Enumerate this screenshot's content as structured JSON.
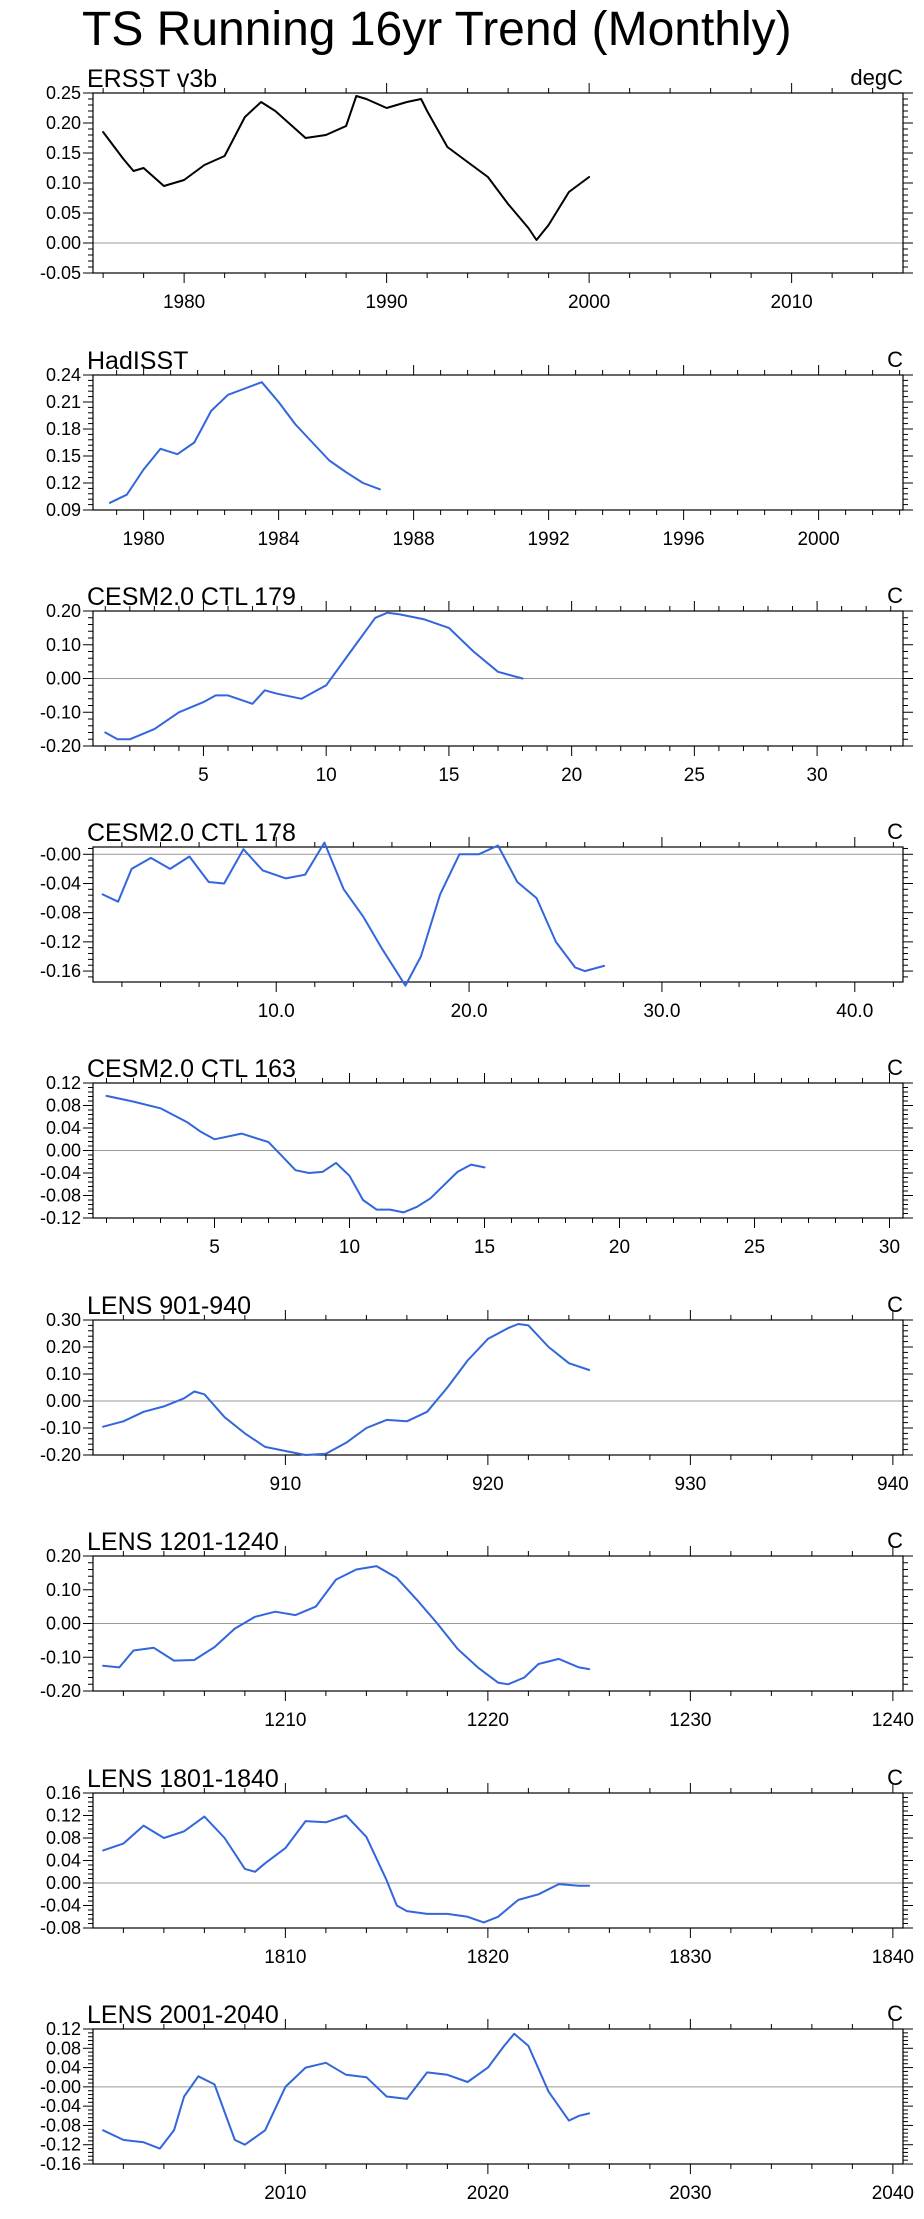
{
  "page_title": "TS Running 16yr Trend (Monthly)",
  "colors": {
    "obs_line": "#000000",
    "model_line": "#3366dd",
    "zero_line": "#999999",
    "axis": "#000000"
  },
  "chart_data": [
    {
      "type": "line",
      "title": "ERSST v3b",
      "units": "degC",
      "xlim": [
        1975.5,
        2015.5
      ],
      "ylim": [
        -0.05,
        0.25
      ],
      "xticks": [
        1980,
        1990,
        2000,
        2010
      ],
      "xtick_labels": [
        "1980",
        "1990",
        "2000",
        "2010"
      ],
      "yticks": [
        -0.05,
        0.0,
        0.05,
        0.1,
        0.15,
        0.2,
        0.25
      ],
      "ytick_labels": [
        "-0.05",
        "0.00",
        "0.05",
        "0.10",
        "0.15",
        "0.20",
        "0.25"
      ],
      "line_color": "#000000",
      "series": [
        {
          "name": "ERSST v3b",
          "x": [
            1976,
            1977,
            1977.5,
            1978,
            1979,
            1980,
            1981,
            1982,
            1983,
            1983.8,
            1984.5,
            1985,
            1986,
            1987,
            1988,
            1988.5,
            1989,
            1990,
            1991,
            1991.7,
            1992,
            1993,
            1994,
            1995,
            1996,
            1997,
            1997.4,
            1998,
            1999,
            2000
          ],
          "y": [
            0.185,
            0.14,
            0.12,
            0.125,
            0.095,
            0.105,
            0.13,
            0.145,
            0.21,
            0.235,
            0.22,
            0.205,
            0.175,
            0.18,
            0.195,
            0.245,
            0.24,
            0.225,
            0.235,
            0.24,
            0.22,
            0.16,
            0.135,
            0.11,
            0.065,
            0.025,
            0.005,
            0.03,
            0.085,
            0.11
          ]
        }
      ]
    },
    {
      "type": "line",
      "title": "HadISST",
      "units": "C",
      "xlim": [
        1978.5,
        2002.5
      ],
      "ylim": [
        0.09,
        0.24
      ],
      "xticks": [
        1980,
        1984,
        1988,
        1992,
        1996,
        2000
      ],
      "xtick_labels": [
        "1980",
        "1984",
        "1988",
        "1992",
        "1996",
        "2000"
      ],
      "yticks": [
        0.09,
        0.12,
        0.15,
        0.18,
        0.21,
        0.24
      ],
      "ytick_labels": [
        "0.09",
        "0.12",
        "0.15",
        "0.18",
        "0.21",
        "0.24"
      ],
      "line_color": "#3366dd",
      "series": [
        {
          "name": "HadISST",
          "x": [
            1979,
            1979.5,
            1980,
            1980.5,
            1981,
            1981.5,
            1982,
            1982.5,
            1983,
            1983.5,
            1984,
            1984.5,
            1985,
            1985.5,
            1986,
            1986.5,
            1987
          ],
          "y": [
            0.098,
            0.107,
            0.135,
            0.158,
            0.152,
            0.165,
            0.2,
            0.218,
            0.225,
            0.232,
            0.21,
            0.185,
            0.165,
            0.145,
            0.132,
            0.12,
            0.113
          ]
        }
      ]
    },
    {
      "type": "line",
      "title": "CESM2.0 CTL 179",
      "units": "C",
      "xlim": [
        0.5,
        33.5
      ],
      "ylim": [
        -0.2,
        0.2
      ],
      "xticks": [
        5,
        10,
        15,
        20,
        25,
        30
      ],
      "xtick_labels": [
        "5",
        "10",
        "15",
        "20",
        "25",
        "30"
      ],
      "yticks": [
        -0.2,
        -0.1,
        0.0,
        0.1,
        0.2
      ],
      "ytick_labels": [
        "-0.20",
        "-0.10",
        "0.00",
        "0.10",
        "0.20"
      ],
      "line_color": "#3366dd",
      "series": [
        {
          "name": "CESM2.0 CTL 179",
          "x": [
            1,
            1.5,
            2,
            3,
            4,
            5,
            5.5,
            6,
            7,
            7.5,
            8,
            9,
            10,
            11,
            12,
            12.5,
            13,
            14,
            15,
            16,
            17,
            18
          ],
          "y": [
            -0.16,
            -0.18,
            -0.18,
            -0.15,
            -0.1,
            -0.07,
            -0.05,
            -0.05,
            -0.075,
            -0.035,
            -0.045,
            -0.06,
            -0.02,
            0.08,
            0.18,
            0.195,
            0.19,
            0.175,
            0.15,
            0.08,
            0.02,
            0.0
          ]
        }
      ]
    },
    {
      "type": "line",
      "title": "CESM2.0 CTL 178",
      "units": "C",
      "xlim": [
        0.5,
        42.5
      ],
      "ylim": [
        -0.175,
        0.01
      ],
      "xticks": [
        10,
        20,
        30,
        40
      ],
      "xtick_labels": [
        "10.0",
        "20.0",
        "30.0",
        "40.0"
      ],
      "yticks": [
        -0.16,
        -0.12,
        -0.08,
        -0.04,
        0.0
      ],
      "ytick_labels": [
        "-0.16",
        "-0.12",
        "-0.08",
        "-0.04",
        "-0.00"
      ],
      "line_color": "#3366dd",
      "series": [
        {
          "name": "CESM2.0 CTL 178",
          "x": [
            1,
            1.8,
            2.5,
            3.5,
            4.5,
            5.5,
            6.5,
            7.3,
            8.3,
            9.3,
            10.5,
            11.5,
            12.5,
            13.5,
            14.5,
            15.5,
            16.7,
            17.5,
            18.5,
            19.5,
            20.5,
            21.5,
            22.5,
            23.5,
            24.5,
            25.5,
            26,
            27
          ],
          "y": [
            -0.055,
            -0.065,
            -0.02,
            -0.005,
            -0.02,
            -0.003,
            -0.038,
            -0.04,
            0.007,
            -0.022,
            -0.033,
            -0.028,
            0.016,
            -0.048,
            -0.085,
            -0.13,
            -0.18,
            -0.14,
            -0.055,
            0.0,
            0.0,
            0.012,
            -0.038,
            -0.06,
            -0.12,
            -0.155,
            -0.16,
            -0.153
          ]
        }
      ]
    },
    {
      "type": "line",
      "title": "CESM2.0 CTL 163",
      "units": "C",
      "xlim": [
        0.5,
        30.5
      ],
      "ylim": [
        -0.12,
        0.12
      ],
      "xticks": [
        5,
        10,
        15,
        20,
        25,
        30
      ],
      "xtick_labels": [
        "5",
        "10",
        "15",
        "20",
        "25",
        "30"
      ],
      "yticks": [
        -0.12,
        -0.08,
        -0.04,
        0.0,
        0.04,
        0.08,
        0.12
      ],
      "ytick_labels": [
        "-0.12",
        "-0.08",
        "-0.04",
        "0.00",
        "0.04",
        "0.08",
        "0.12"
      ],
      "line_color": "#3366dd",
      "series": [
        {
          "name": "CESM2.0 CTL 163",
          "x": [
            1,
            2,
            3,
            4,
            4.5,
            5,
            6,
            7,
            7.5,
            8,
            8.5,
            9,
            9.5,
            10,
            10.5,
            11,
            11.5,
            12,
            12.5,
            13,
            14,
            14.5,
            15
          ],
          "y": [
            0.097,
            0.087,
            0.075,
            0.05,
            0.033,
            0.02,
            0.03,
            0.015,
            -0.01,
            -0.035,
            -0.04,
            -0.038,
            -0.022,
            -0.045,
            -0.088,
            -0.105,
            -0.105,
            -0.11,
            -0.1,
            -0.085,
            -0.038,
            -0.025,
            -0.03
          ]
        }
      ]
    },
    {
      "type": "line",
      "title": "LENS 901-940",
      "units": "C",
      "xlim": [
        900.5,
        940.5
      ],
      "ylim": [
        -0.2,
        0.3
      ],
      "xticks": [
        910,
        920,
        930,
        940
      ],
      "xtick_labels": [
        "910",
        "920",
        "930",
        "940"
      ],
      "yticks": [
        -0.2,
        -0.1,
        0.0,
        0.1,
        0.2,
        0.3
      ],
      "ytick_labels": [
        "-0.20",
        "-0.10",
        "0.00",
        "0.10",
        "0.20",
        "0.30"
      ],
      "line_color": "#3366dd",
      "series": [
        {
          "name": "LENS 901-940",
          "x": [
            901,
            902,
            903,
            904,
            905,
            905.5,
            906,
            907,
            908,
            909,
            910,
            911,
            912,
            913,
            914,
            915,
            916,
            917,
            918,
            919,
            920,
            921,
            921.5,
            922,
            923,
            924,
            925
          ],
          "y": [
            -0.095,
            -0.075,
            -0.04,
            -0.02,
            0.01,
            0.035,
            0.025,
            -0.06,
            -0.12,
            -0.17,
            -0.185,
            -0.2,
            -0.195,
            -0.155,
            -0.1,
            -0.07,
            -0.075,
            -0.04,
            0.05,
            0.15,
            0.23,
            0.27,
            0.285,
            0.28,
            0.2,
            0.14,
            0.115
          ]
        }
      ]
    },
    {
      "type": "line",
      "title": "LENS 1201-1240",
      "units": "C",
      "xlim": [
        1200.5,
        1240.5
      ],
      "ylim": [
        -0.2,
        0.2
      ],
      "xticks": [
        1210,
        1220,
        1230,
        1240
      ],
      "xtick_labels": [
        "1210",
        "1220",
        "1230",
        "1240"
      ],
      "yticks": [
        -0.2,
        -0.1,
        0.0,
        0.1,
        0.2
      ],
      "ytick_labels": [
        "-0.20",
        "-0.10",
        "0.00",
        "0.10",
        "0.20"
      ],
      "line_color": "#3366dd",
      "series": [
        {
          "name": "LENS 1201-1240",
          "x": [
            1201,
            1201.8,
            1202.5,
            1203.5,
            1204.5,
            1205.5,
            1206.5,
            1207.5,
            1208.5,
            1209.5,
            1210.5,
            1211.5,
            1212.5,
            1213.5,
            1214.5,
            1215.5,
            1216.5,
            1217.5,
            1218.5,
            1219.5,
            1220.5,
            1221,
            1221.8,
            1222.5,
            1223.5,
            1224.5,
            1225
          ],
          "y": [
            -0.125,
            -0.13,
            -0.08,
            -0.072,
            -0.11,
            -0.108,
            -0.07,
            -0.015,
            0.02,
            0.035,
            0.025,
            0.05,
            0.13,
            0.16,
            0.17,
            0.135,
            0.07,
            0.0,
            -0.075,
            -0.13,
            -0.175,
            -0.18,
            -0.16,
            -0.12,
            -0.105,
            -0.13,
            -0.135
          ]
        }
      ]
    },
    {
      "type": "line",
      "title": "LENS 1801-1840",
      "units": "C",
      "xlim": [
        1800.5,
        1840.5
      ],
      "ylim": [
        -0.08,
        0.16
      ],
      "xticks": [
        1810,
        1820,
        1830,
        1840
      ],
      "xtick_labels": [
        "1810",
        "1820",
        "1830",
        "1840"
      ],
      "yticks": [
        -0.08,
        -0.04,
        0.0,
        0.04,
        0.08,
        0.12,
        0.16
      ],
      "ytick_labels": [
        "-0.08",
        "-0.04",
        "0.00",
        "0.04",
        "0.08",
        "0.12",
        "0.16"
      ],
      "line_color": "#3366dd",
      "series": [
        {
          "name": "LENS 1801-1840",
          "x": [
            1801,
            1802,
            1803,
            1804,
            1805,
            1806,
            1807,
            1808,
            1808.5,
            1809,
            1810,
            1811,
            1812,
            1813,
            1814,
            1815,
            1815.5,
            1816,
            1817,
            1818,
            1819,
            1819.8,
            1820.5,
            1821.5,
            1822.5,
            1823.5,
            1824.5,
            1825
          ],
          "y": [
            0.058,
            0.07,
            0.102,
            0.08,
            0.092,
            0.118,
            0.08,
            0.025,
            0.02,
            0.035,
            0.062,
            0.11,
            0.108,
            0.12,
            0.082,
            0.005,
            -0.04,
            -0.05,
            -0.055,
            -0.055,
            -0.06,
            -0.07,
            -0.06,
            -0.03,
            -0.02,
            -0.002,
            -0.005,
            -0.005
          ]
        }
      ]
    },
    {
      "type": "line",
      "title": "LENS 2001-2040",
      "units": "C",
      "xlim": [
        2000.5,
        2040.5
      ],
      "ylim": [
        -0.16,
        0.12
      ],
      "xticks": [
        2010,
        2020,
        2030,
        2040
      ],
      "xtick_labels": [
        "2010",
        "2020",
        "2030",
        "2040"
      ],
      "yticks": [
        -0.16,
        -0.12,
        -0.08,
        -0.04,
        0.0,
        0.04,
        0.08,
        0.12
      ],
      "ytick_labels": [
        "-0.16",
        "-0.12",
        "-0.08",
        "-0.04",
        "-0.00",
        "0.04",
        "0.08",
        "0.12"
      ],
      "line_color": "#3366dd",
      "series": [
        {
          "name": "LENS 2001-2040",
          "x": [
            2001,
            2002,
            2003,
            2003.8,
            2004.5,
            2005,
            2005.7,
            2006.5,
            2007.5,
            2008,
            2009,
            2010,
            2011,
            2012,
            2013,
            2014,
            2015,
            2016,
            2017,
            2018,
            2019,
            2020,
            2020.8,
            2021.3,
            2022,
            2023,
            2024,
            2024.5,
            2025
          ],
          "y": [
            -0.09,
            -0.11,
            -0.115,
            -0.128,
            -0.09,
            -0.02,
            0.022,
            0.005,
            -0.11,
            -0.12,
            -0.09,
            0.0,
            0.04,
            0.05,
            0.025,
            0.02,
            -0.02,
            -0.025,
            0.03,
            0.025,
            0.01,
            0.04,
            0.085,
            0.11,
            0.085,
            -0.01,
            -0.07,
            -0.06,
            -0.055
          ]
        }
      ]
    }
  ]
}
